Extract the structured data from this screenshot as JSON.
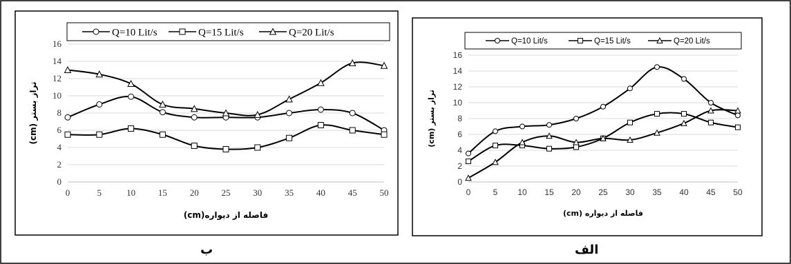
{
  "colors": {
    "line": "#000000",
    "grid": "#d9d9d9",
    "frame": "#000000"
  },
  "panel_labels": {
    "left": "ب",
    "right": "الف"
  },
  "chart_data": [
    {
      "type": "line",
      "panel": "ب",
      "xlabel": "فاصله از دیواره(cm)",
      "ylabel": "تراز بستر (cm)",
      "x": [
        0,
        5,
        10,
        15,
        20,
        25,
        30,
        35,
        40,
        45,
        50
      ],
      "xlim": [
        0,
        50
      ],
      "ylim": [
        0,
        16
      ],
      "yticks": [
        0,
        2,
        4,
        6,
        8,
        10,
        12,
        14,
        16
      ],
      "grid": "horizontal",
      "legend_position": "top",
      "series": [
        {
          "name": "Q=10 Lit/s",
          "marker": "circle",
          "values": [
            7.5,
            9.0,
            9.9,
            8.1,
            7.5,
            7.5,
            7.5,
            8.0,
            8.4,
            8.0,
            6.0
          ]
        },
        {
          "name": "Q=15 Lit/s",
          "marker": "square",
          "values": [
            5.5,
            5.5,
            6.2,
            5.5,
            4.2,
            3.8,
            4.0,
            5.1,
            6.6,
            6.0,
            5.5
          ]
        },
        {
          "name": "Q=20 Lit/s",
          "marker": "triangle",
          "values": [
            13.0,
            12.5,
            11.4,
            9.0,
            8.5,
            8.0,
            7.8,
            9.6,
            11.5,
            13.8,
            13.5
          ]
        }
      ]
    },
    {
      "type": "line",
      "panel": "الف",
      "xlabel": "فاصله از دیواره (cm)",
      "ylabel": "تراز بستر (cm)",
      "x": [
        0,
        5,
        10,
        15,
        20,
        25,
        30,
        35,
        40,
        45,
        50
      ],
      "xlim": [
        0,
        50
      ],
      "ylim": [
        0,
        16
      ],
      "yticks": [
        0,
        2,
        4,
        6,
        8,
        10,
        12,
        14,
        16
      ],
      "grid": "horizontal",
      "legend_position": "top",
      "series": [
        {
          "name": "Q=10 Lit/s",
          "marker": "circle",
          "values": [
            3.6,
            6.4,
            7.0,
            7.2,
            8.0,
            9.5,
            11.8,
            14.5,
            13.0,
            10.0,
            8.4
          ]
        },
        {
          "name": "Q=15 Lit/s",
          "marker": "square",
          "values": [
            2.6,
            4.6,
            4.6,
            4.2,
            4.4,
            5.5,
            7.5,
            8.6,
            8.6,
            7.5,
            6.9
          ]
        },
        {
          "name": "Q=20 Lit/s",
          "marker": "triangle",
          "values": [
            0.5,
            2.5,
            5.0,
            5.8,
            5.0,
            5.5,
            5.3,
            6.2,
            7.4,
            9.0,
            9.0
          ]
        }
      ]
    }
  ]
}
